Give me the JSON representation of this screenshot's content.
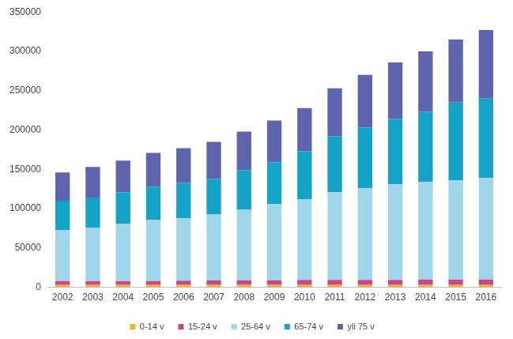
{
  "chart_data": {
    "type": "bar",
    "categories": [
      "2002",
      "2003",
      "2004",
      "2005",
      "2006",
      "2007",
      "2008",
      "2009",
      "2010",
      "2011",
      "2012",
      "2013",
      "2014",
      "2015",
      "2016"
    ],
    "series": [
      {
        "name": "0-14 v",
        "color": "#f0b323",
        "values": [
          3000,
          3000,
          3000,
          3000,
          3000,
          3000,
          3000,
          3000,
          3000,
          3000,
          3000,
          3000,
          3000,
          3000,
          3000
        ]
      },
      {
        "name": "15-24 v",
        "color": "#c9468f",
        "values": [
          5000,
          5000,
          5000,
          5000,
          5500,
          6000,
          6000,
          6000,
          6500,
          6500,
          6500,
          6500,
          7000,
          7000,
          7000
        ]
      },
      {
        "name": "25-64 v",
        "color": "#9fd6ea",
        "values": [
          65000,
          68000,
          73000,
          78000,
          79500,
          84000,
          90000,
          97000,
          102500,
          111500,
          116500,
          121500,
          124000,
          126000,
          129000
        ]
      },
      {
        "name": "65-74 v",
        "color": "#14a3c7",
        "values": [
          37000,
          38000,
          40000,
          42000,
          45000,
          45000,
          50000,
          53000,
          61000,
          71000,
          77000,
          83000,
          89000,
          99000,
          101000
        ]
      },
      {
        "name": "yli 75 v",
        "color": "#5f65ad",
        "values": [
          36000,
          39000,
          40000,
          43000,
          44000,
          47000,
          49000,
          53000,
          55000,
          61000,
          67000,
          72000,
          77000,
          80000,
          87000
        ]
      }
    ],
    "ylim": [
      0,
      350000
    ],
    "yticks": [
      0,
      50000,
      100000,
      150000,
      200000,
      250000,
      300000,
      350000
    ],
    "stacked": true,
    "grid": false,
    "legend": "bottom"
  }
}
